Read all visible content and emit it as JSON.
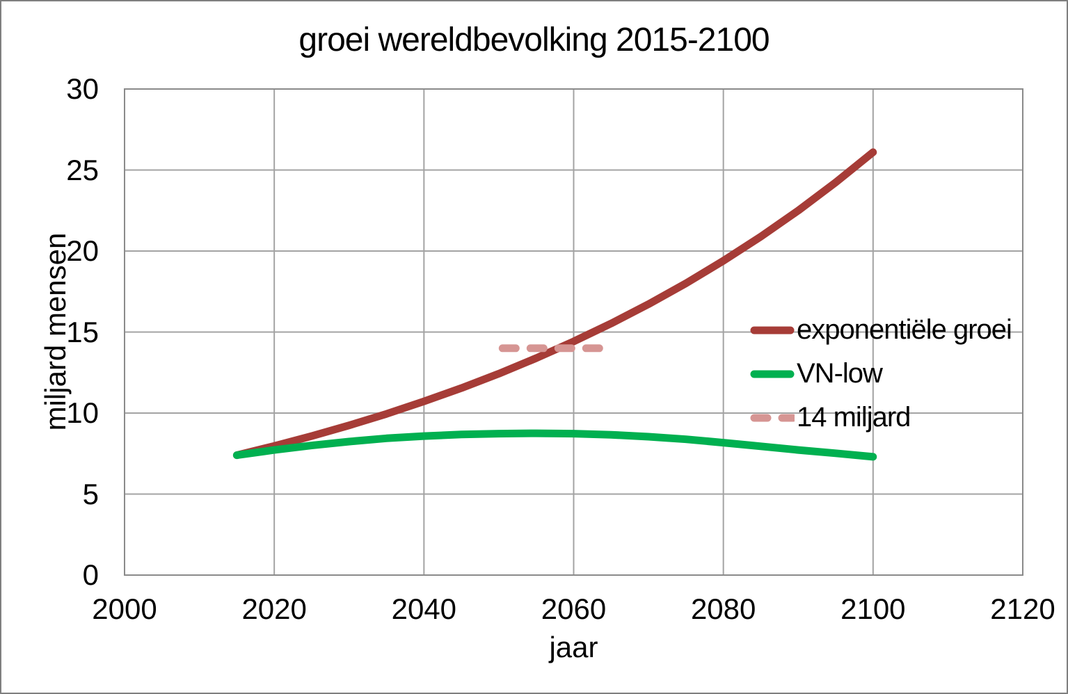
{
  "chart_data": {
    "type": "line",
    "title": "groei wereldbevolking 2015-2100",
    "xlabel": "jaar",
    "ylabel": "miljard mensen",
    "xlim": [
      2000,
      2120
    ],
    "ylim": [
      0,
      30
    ],
    "xticks": [
      2000,
      2020,
      2040,
      2060,
      2080,
      2100,
      2120
    ],
    "yticks": [
      0,
      5,
      10,
      15,
      20,
      25,
      30
    ],
    "grid": true,
    "legend_position": "inside right",
    "colors": {
      "grid": "#a3a3a3",
      "border": "#8a8a8a",
      "text": "#000000"
    },
    "series": [
      {
        "name": "exponentiële groei",
        "color": "#a63c37",
        "style": "solid",
        "x": [
          2015,
          2020,
          2025,
          2030,
          2035,
          2040,
          2045,
          2050,
          2055,
          2060,
          2065,
          2070,
          2075,
          2080,
          2085,
          2090,
          2095,
          2100
        ],
        "y": [
          7.4,
          7.97,
          8.58,
          9.24,
          9.95,
          10.72,
          11.54,
          12.43,
          13.39,
          14.42,
          15.53,
          16.72,
          18.01,
          19.4,
          20.89,
          22.5,
          24.23,
          26.1
        ]
      },
      {
        "name": "VN-low",
        "color": "#00b050",
        "style": "solid",
        "x": [
          2015,
          2020,
          2025,
          2030,
          2035,
          2040,
          2045,
          2050,
          2055,
          2060,
          2065,
          2070,
          2075,
          2080,
          2085,
          2090,
          2095,
          2100
        ],
        "y": [
          7.4,
          7.72,
          8.0,
          8.24,
          8.44,
          8.58,
          8.68,
          8.73,
          8.75,
          8.73,
          8.66,
          8.54,
          8.38,
          8.17,
          7.95,
          7.72,
          7.52,
          7.3
        ]
      },
      {
        "name": "14 miljard",
        "color": "#d69593",
        "style": "dashed",
        "x": [
          2050.5,
          2064.5
        ],
        "y": [
          14,
          14
        ]
      }
    ]
  }
}
